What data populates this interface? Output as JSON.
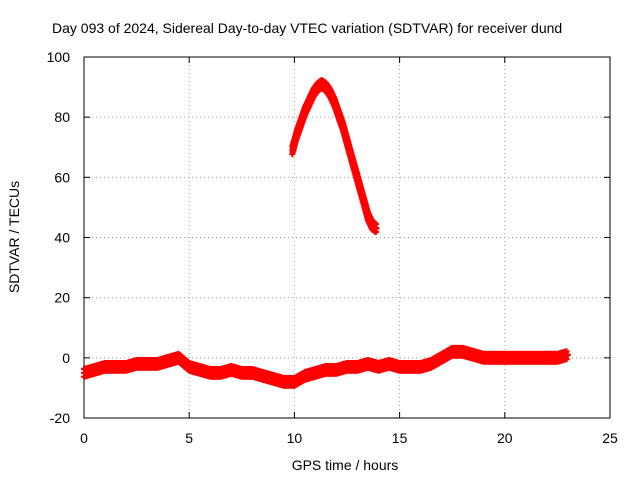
{
  "chart_data": {
    "type": "scatter",
    "title": "Day 093 of 2024, Sidereal Day-to-day VTEC variation (SDTVAR) for receiver dund",
    "xlabel": "GPS time / hours",
    "ylabel": "SDTVAR / TECUs",
    "xlim": [
      0,
      25
    ],
    "ylim": [
      -20,
      100
    ],
    "x_ticks": [
      0,
      5,
      10,
      15,
      20,
      25
    ],
    "x_tick_labels": [
      "0",
      "5",
      "10",
      "15",
      "20",
      "25"
    ],
    "y_ticks": [
      -20,
      0,
      20,
      40,
      60,
      80,
      100
    ],
    "y_tick_labels": [
      "-20",
      "0",
      "20",
      "40",
      "60",
      "80",
      "100"
    ],
    "grid": true,
    "marker": "plus",
    "series": [
      {
        "name": "SDTVAR band",
        "color": "#ff0000",
        "x": [
          0.0,
          0.5,
          1.0,
          1.5,
          2.0,
          2.5,
          3.0,
          3.5,
          4.0,
          4.5,
          5.0,
          5.5,
          6.0,
          6.5,
          7.0,
          7.5,
          8.0,
          8.5,
          9.0,
          9.5,
          10.0,
          10.5,
          11.0,
          11.5,
          12.0,
          12.5,
          13.0,
          13.5,
          14.0,
          14.5,
          15.0,
          15.5,
          16.0,
          16.5,
          17.0,
          17.5,
          18.0,
          18.5,
          19.0,
          19.5,
          20.0,
          20.5,
          21.0,
          21.5,
          22.0,
          22.5,
          23.0
        ],
        "y": [
          -5,
          -4,
          -3,
          -3,
          -3,
          -2,
          -2,
          -2,
          -1,
          0,
          -3,
          -4,
          -5,
          -5,
          -4,
          -5,
          -5,
          -6,
          -7,
          -8,
          -8,
          -6,
          -5,
          -4,
          -4,
          -3,
          -3,
          -2,
          -3,
          -2,
          -3,
          -3,
          -3,
          -2,
          0,
          2,
          2,
          1,
          0,
          0,
          0,
          0,
          0,
          0,
          0,
          0,
          1
        ]
      },
      {
        "name": "SDTVAR arc",
        "color": "#ff0000",
        "x": [
          9.9,
          10.1,
          10.3,
          10.5,
          10.7,
          10.9,
          11.1,
          11.3,
          11.5,
          11.7,
          11.9,
          12.1,
          12.3,
          12.5,
          12.7,
          12.9,
          13.1,
          13.3,
          13.5,
          13.7,
          13.9
        ],
        "y": [
          69,
          74,
          78,
          82,
          85,
          88,
          90,
          91,
          90,
          88,
          85,
          81,
          77,
          72,
          67,
          62,
          57,
          52,
          47,
          44,
          43
        ]
      }
    ]
  }
}
